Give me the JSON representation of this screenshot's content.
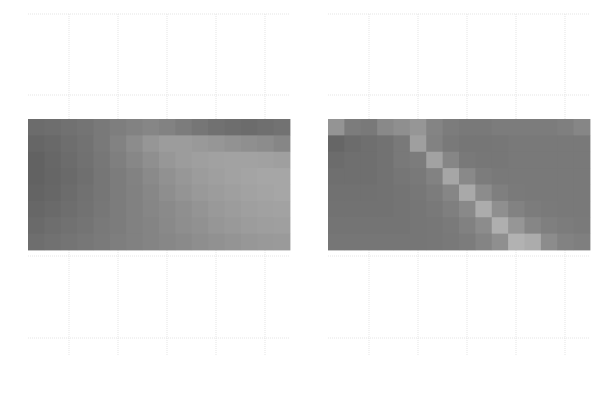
{
  "chart_data": [
    {
      "type": "heatmap",
      "title": "",
      "xlabel": "",
      "ylabel": "",
      "grid": true,
      "colormap": "grayscale",
      "rows": 8,
      "cols": 16,
      "values": [
        [
          0.3,
          0.31,
          0.33,
          0.35,
          0.38,
          0.41,
          0.44,
          0.46,
          0.44,
          0.4,
          0.36,
          0.33,
          0.31,
          0.3,
          0.32,
          0.34
        ],
        [
          0.26,
          0.28,
          0.31,
          0.34,
          0.38,
          0.44,
          0.5,
          0.56,
          0.6,
          0.6,
          0.58,
          0.56,
          0.54,
          0.52,
          0.5,
          0.46
        ],
        [
          0.24,
          0.27,
          0.3,
          0.33,
          0.37,
          0.42,
          0.47,
          0.52,
          0.57,
          0.6,
          0.62,
          0.63,
          0.64,
          0.64,
          0.63,
          0.62
        ],
        [
          0.24,
          0.26,
          0.29,
          0.32,
          0.36,
          0.4,
          0.44,
          0.49,
          0.53,
          0.57,
          0.6,
          0.62,
          0.64,
          0.65,
          0.66,
          0.66
        ],
        [
          0.25,
          0.27,
          0.3,
          0.33,
          0.36,
          0.4,
          0.43,
          0.47,
          0.51,
          0.55,
          0.58,
          0.6,
          0.62,
          0.64,
          0.65,
          0.66
        ],
        [
          0.27,
          0.29,
          0.31,
          0.34,
          0.37,
          0.4,
          0.43,
          0.46,
          0.49,
          0.52,
          0.55,
          0.58,
          0.6,
          0.62,
          0.63,
          0.64
        ],
        [
          0.29,
          0.31,
          0.33,
          0.35,
          0.38,
          0.4,
          0.43,
          0.45,
          0.48,
          0.51,
          0.53,
          0.56,
          0.58,
          0.6,
          0.61,
          0.62
        ],
        [
          0.31,
          0.33,
          0.35,
          0.37,
          0.39,
          0.41,
          0.43,
          0.45,
          0.47,
          0.49,
          0.51,
          0.53,
          0.55,
          0.57,
          0.58,
          0.59
        ]
      ]
    },
    {
      "type": "heatmap",
      "title": "",
      "xlabel": "",
      "ylabel": "",
      "grid": true,
      "colormap": "grayscale",
      "rows": 8,
      "cols": 16,
      "values": [
        [
          0.55,
          0.4,
          0.38,
          0.48,
          0.52,
          0.56,
          0.45,
          0.4,
          0.38,
          0.38,
          0.4,
          0.4,
          0.4,
          0.4,
          0.42,
          0.46
        ],
        [
          0.26,
          0.3,
          0.32,
          0.34,
          0.38,
          0.62,
          0.44,
          0.38,
          0.36,
          0.36,
          0.37,
          0.38,
          0.38,
          0.38,
          0.38,
          0.38
        ],
        [
          0.3,
          0.32,
          0.32,
          0.34,
          0.38,
          0.4,
          0.64,
          0.46,
          0.38,
          0.37,
          0.37,
          0.38,
          0.38,
          0.38,
          0.38,
          0.38
        ],
        [
          0.32,
          0.32,
          0.32,
          0.34,
          0.36,
          0.38,
          0.44,
          0.66,
          0.48,
          0.4,
          0.38,
          0.38,
          0.38,
          0.38,
          0.38,
          0.38
        ],
        [
          0.33,
          0.33,
          0.33,
          0.34,
          0.35,
          0.37,
          0.4,
          0.46,
          0.68,
          0.5,
          0.42,
          0.39,
          0.38,
          0.38,
          0.38,
          0.38
        ],
        [
          0.34,
          0.34,
          0.34,
          0.34,
          0.35,
          0.36,
          0.38,
          0.42,
          0.48,
          0.7,
          0.52,
          0.44,
          0.4,
          0.39,
          0.38,
          0.38
        ],
        [
          0.35,
          0.35,
          0.35,
          0.35,
          0.35,
          0.36,
          0.37,
          0.39,
          0.43,
          0.5,
          0.72,
          0.56,
          0.46,
          0.42,
          0.4,
          0.39
        ],
        [
          0.36,
          0.36,
          0.36,
          0.36,
          0.36,
          0.36,
          0.37,
          0.38,
          0.4,
          0.45,
          0.52,
          0.74,
          0.7,
          0.5,
          0.44,
          0.42
        ]
      ]
    }
  ]
}
